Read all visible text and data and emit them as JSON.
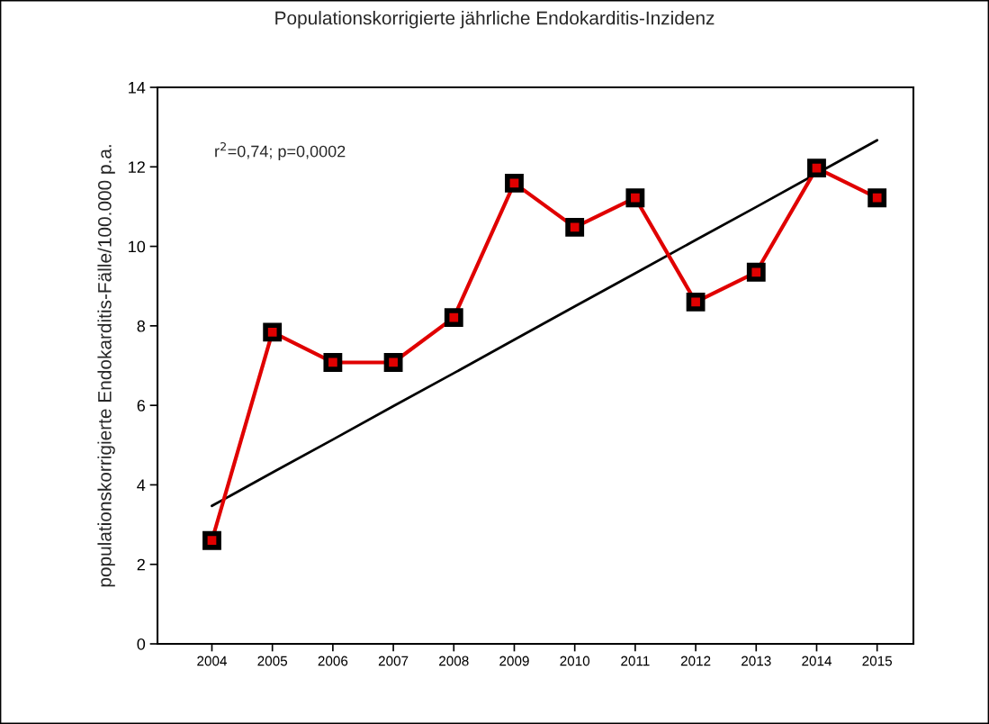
{
  "chart_data": {
    "type": "line",
    "title": "Populationskorrigierte jährliche Endokarditis-Inzidenz",
    "ylabel": "populationskorrigierte Endokarditis-Fälle/100.000 p.a.",
    "categories": [
      "2004",
      "2005",
      "2006",
      "2007",
      "2008",
      "2009",
      "2010",
      "2011",
      "2012",
      "2013",
      "2014",
      "2015"
    ],
    "series": [
      {
        "color": "#e00000",
        "marker": "square",
        "values": [
          2.6,
          7.84,
          7.08,
          7.08,
          8.21,
          11.59,
          10.48,
          11.22,
          8.6,
          9.35,
          11.97,
          11.22
        ]
      },
      {
        "color": "#000000",
        "marker": "none",
        "values": [
          3.47,
          4.31,
          5.14,
          5.98,
          6.81,
          7.65,
          8.49,
          9.32,
          10.16,
          10.99,
          11.83,
          12.67
        ]
      }
    ],
    "ylim": [
      0,
      14
    ],
    "yticks": [
      0,
      2,
      4,
      6,
      8,
      10,
      12,
      14
    ],
    "annotations": [
      "r$^{2}$=0,74; p=0,0002"
    ],
    "grid": false,
    "legend": false
  }
}
